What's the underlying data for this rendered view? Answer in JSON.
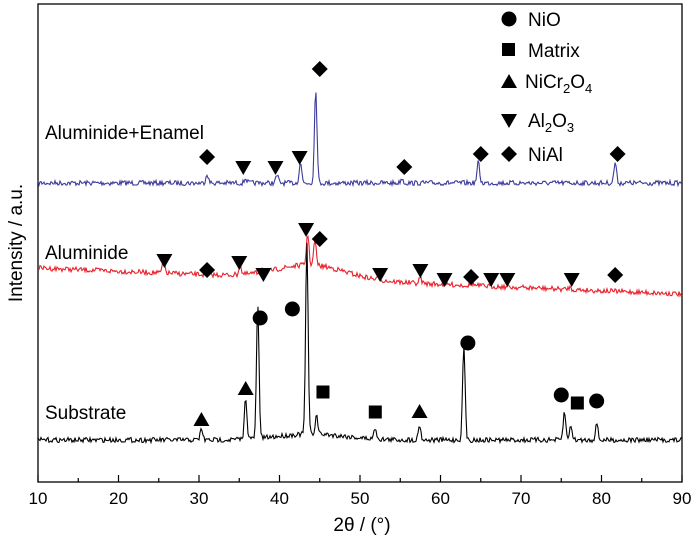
{
  "chart_data": {
    "type": "line",
    "xlabel": "2θ / (°)",
    "ylabel": "Intensity / a.u.",
    "xlim": [
      10,
      90
    ],
    "xticks": [
      10,
      20,
      30,
      40,
      50,
      60,
      70,
      80,
      90
    ],
    "grid": false,
    "y_tick_labels_shown": false,
    "legend": {
      "placement": "top-right",
      "entries": [
        {
          "marker": "circle",
          "label": "NiO"
        },
        {
          "marker": "square",
          "label": "Matrix"
        },
        {
          "marker": "triangle-up",
          "label": "NiCr2O4",
          "label_base": "NiCr",
          "sub1": "2",
          "mid": "O",
          "sub2": "4"
        },
        {
          "marker": "triangle-down",
          "label": "Al2O3",
          "label_base": "Al",
          "sub1": "2",
          "mid": "O",
          "sub2": "3"
        },
        {
          "marker": "diamond",
          "label": "NiAl"
        }
      ]
    },
    "series": [
      {
        "name": "Aluminide+Enamel",
        "color": "#3b3b9a",
        "peaks": [
          {
            "x": 31.0,
            "y": 0.1
          },
          {
            "x": 35.8,
            "y": 0.05
          },
          {
            "x": 39.7,
            "y": 0.08
          },
          {
            "x": 42.6,
            "y": 0.22
          },
          {
            "x": 44.5,
            "y": 1.0
          },
          {
            "x": 55.2,
            "y": 0.05
          },
          {
            "x": 64.7,
            "y": 0.22
          },
          {
            "x": 81.7,
            "y": 0.22
          }
        ],
        "markers": [
          {
            "x": 31.0,
            "type": "diamond"
          },
          {
            "x": 35.5,
            "type": "triangle-down"
          },
          {
            "x": 39.5,
            "type": "triangle-down"
          },
          {
            "x": 42.5,
            "type": "triangle-down"
          },
          {
            "x": 45.0,
            "type": "diamond"
          },
          {
            "x": 55.5,
            "type": "diamond"
          },
          {
            "x": 65.0,
            "type": "diamond"
          },
          {
            "x": 82.0,
            "type": "diamond"
          }
        ]
      },
      {
        "name": "Aluminide",
        "color": "#e8202a",
        "peaks": [
          {
            "x": 25.6,
            "y": 0.3
          },
          {
            "x": 35.1,
            "y": 0.2
          },
          {
            "x": 37.8,
            "y": 0.12
          },
          {
            "x": 43.5,
            "y": 0.7
          },
          {
            "x": 44.4,
            "y": 0.55
          },
          {
            "x": 52.4,
            "y": 0.06
          },
          {
            "x": 57.5,
            "y": 0.12
          },
          {
            "x": 64.0,
            "y": 0.05
          },
          {
            "x": 76.0,
            "y": 0.05
          }
        ],
        "markers": [
          {
            "x": 25.7,
            "type": "triangle-down"
          },
          {
            "x": 31.0,
            "type": "diamond"
          },
          {
            "x": 35.0,
            "type": "triangle-down"
          },
          {
            "x": 38.0,
            "type": "triangle-down"
          },
          {
            "x": 43.3,
            "type": "triangle-down"
          },
          {
            "x": 45.0,
            "type": "diamond"
          },
          {
            "x": 52.5,
            "type": "triangle-down"
          },
          {
            "x": 57.5,
            "type": "triangle-down"
          },
          {
            "x": 60.5,
            "type": "triangle-down"
          },
          {
            "x": 63.8,
            "type": "diamond"
          },
          {
            "x": 66.3,
            "type": "triangle-down"
          },
          {
            "x": 68.3,
            "type": "triangle-down"
          },
          {
            "x": 76.3,
            "type": "triangle-down"
          },
          {
            "x": 81.7,
            "type": "diamond"
          }
        ]
      },
      {
        "name": "Substrate",
        "color": "#000000",
        "peaks": [
          {
            "x": 30.3,
            "y": 0.06
          },
          {
            "x": 35.8,
            "y": 0.22
          },
          {
            "x": 37.3,
            "y": 0.7
          },
          {
            "x": 43.4,
            "y": 1.0
          },
          {
            "x": 44.6,
            "y": 0.1
          },
          {
            "x": 51.9,
            "y": 0.06
          },
          {
            "x": 57.4,
            "y": 0.08
          },
          {
            "x": 62.9,
            "y": 0.5
          },
          {
            "x": 75.4,
            "y": 0.15
          },
          {
            "x": 76.2,
            "y": 0.08
          },
          {
            "x": 79.4,
            "y": 0.09
          }
        ],
        "markers": [
          {
            "x": 30.3,
            "type": "triangle-up"
          },
          {
            "x": 35.8,
            "type": "triangle-up"
          },
          {
            "x": 37.6,
            "type": "circle"
          },
          {
            "x": 41.6,
            "type": "circle"
          },
          {
            "x": 45.4,
            "type": "square"
          },
          {
            "x": 51.9,
            "type": "square"
          },
          {
            "x": 57.4,
            "type": "triangle-up"
          },
          {
            "x": 63.4,
            "type": "circle"
          },
          {
            "x": 75.0,
            "type": "circle"
          },
          {
            "x": 77.0,
            "type": "square"
          },
          {
            "x": 79.4,
            "type": "circle"
          }
        ]
      }
    ]
  }
}
